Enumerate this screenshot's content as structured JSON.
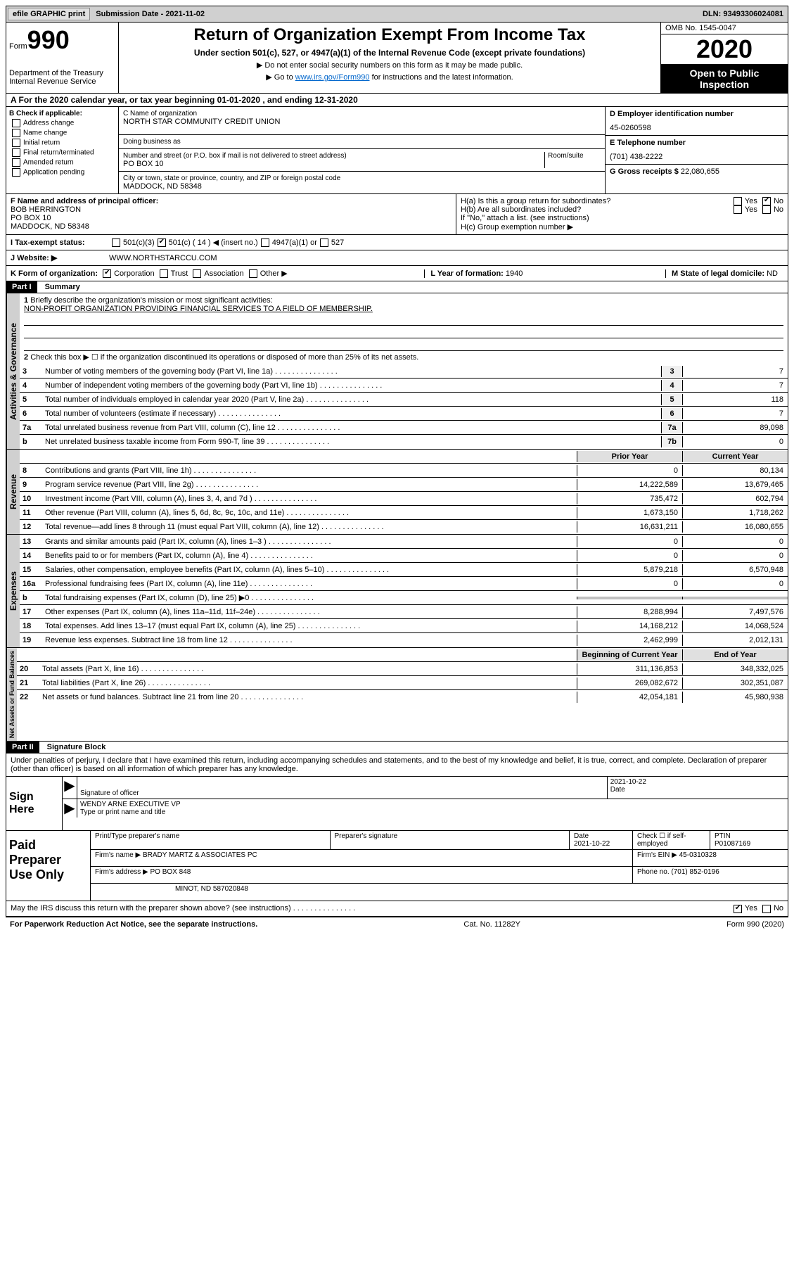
{
  "topbar": {
    "efile": "efile GRAPHIC print",
    "sub": "Submission Date - 2021-11-02",
    "dln": "DLN: 93493306024081"
  },
  "header": {
    "form_prefix": "Form",
    "form_num": "990",
    "dept": "Department of the Treasury Internal Revenue Service",
    "title": "Return of Organization Exempt From Income Tax",
    "sub1": "Under section 501(c), 527, or 4947(a)(1) of the Internal Revenue Code (except private foundations)",
    "sub2a": "Do not enter social security numbers on this form as it may be made public.",
    "sub2b_pre": "Go to ",
    "sub2b_link": "www.irs.gov/Form990",
    "sub2b_post": " for instructions and the latest information.",
    "omb": "OMB No. 1545-0047",
    "year": "2020",
    "open": "Open to Public Inspection"
  },
  "row_a": "A For the 2020 calendar year, or tax year beginning 01-01-2020   , and ending 12-31-2020",
  "check_b": {
    "header": "B Check if applicable:",
    "items": [
      "Address change",
      "Name change",
      "Initial return",
      "Final return/terminated",
      "Amended return",
      "Application pending"
    ]
  },
  "org": {
    "c_label": "C Name of organization",
    "name": "NORTH STAR COMMUNITY CREDIT UNION",
    "dba_label": "Doing business as",
    "addr_label": "Number and street (or P.O. box if mail is not delivered to street address)",
    "room_label": "Room/suite",
    "addr": "PO BOX 10",
    "city_label": "City or town, state or province, country, and ZIP or foreign postal code",
    "city": "MADDOCK, ND  58348"
  },
  "col_d": {
    "d_label": "D Employer identification number",
    "ein": "45-0260598",
    "e_label": "E Telephone number",
    "phone": "(701) 438-2222",
    "g_label": "G Gross receipts $",
    "g_val": "22,080,655"
  },
  "officer": {
    "f_label": "F  Name and address of principal officer:",
    "name": "BOB HERRINGTON",
    "addr1": "PO BOX 10",
    "addr2": "MADDOCK, ND  58348"
  },
  "h": {
    "ha": "H(a)  Is this a group return for subordinates?",
    "hb": "H(b)  Are all subordinates included?",
    "hb_note": "If \"No,\" attach a list. (see instructions)",
    "hc": "H(c)  Group exemption number ▶",
    "yes": "Yes",
    "no": "No"
  },
  "row_i": {
    "label": "I   Tax-exempt status:",
    "opt1": "501(c)(3)",
    "opt2": "501(c) ( 14 ) ◀ (insert no.)",
    "opt3": "4947(a)(1) or",
    "opt4": "527"
  },
  "row_j": {
    "label": "J   Website: ▶",
    "val": "WWW.NORTHSTARCCU.COM"
  },
  "row_k": {
    "label": "K Form of organization:",
    "corp": "Corporation",
    "trust": "Trust",
    "assoc": "Association",
    "other": "Other ▶",
    "l_label": "L Year of formation:",
    "l_val": "1940",
    "m_label": "M State of legal domicile:",
    "m_val": "ND"
  },
  "part1": {
    "header": "Part I",
    "title": "Summary",
    "line1": "Briefly describe the organization's mission or most significant activities:",
    "mission": "NON-PROFIT ORGANIZATION PROVIDING FINANCIAL SERVICES TO A FIELD OF MEMBERSHIP.",
    "line2": "Check this box ▶ ☐  if the organization discontinued its operations or disposed of more than 25% of its net assets."
  },
  "gov_lines": [
    {
      "n": "3",
      "d": "Number of voting members of the governing body (Part VI, line 1a)",
      "b": "3",
      "v": "7"
    },
    {
      "n": "4",
      "d": "Number of independent voting members of the governing body (Part VI, line 1b)",
      "b": "4",
      "v": "7"
    },
    {
      "n": "5",
      "d": "Total number of individuals employed in calendar year 2020 (Part V, line 2a)",
      "b": "5",
      "v": "118"
    },
    {
      "n": "6",
      "d": "Total number of volunteers (estimate if necessary)",
      "b": "6",
      "v": "7"
    },
    {
      "n": "7a",
      "d": "Total unrelated business revenue from Part VIII, column (C), line 12",
      "b": "7a",
      "v": "89,098"
    },
    {
      "n": "b",
      "d": "Net unrelated business taxable income from Form 990-T, line 39",
      "b": "7b",
      "v": "0"
    }
  ],
  "rev_header": {
    "py": "Prior Year",
    "cy": "Current Year"
  },
  "rev_lines": [
    {
      "n": "8",
      "d": "Contributions and grants (Part VIII, line 1h)",
      "py": "0",
      "cy": "80,134"
    },
    {
      "n": "9",
      "d": "Program service revenue (Part VIII, line 2g)",
      "py": "14,222,589",
      "cy": "13,679,465"
    },
    {
      "n": "10",
      "d": "Investment income (Part VIII, column (A), lines 3, 4, and 7d )",
      "py": "735,472",
      "cy": "602,794"
    },
    {
      "n": "11",
      "d": "Other revenue (Part VIII, column (A), lines 5, 6d, 8c, 9c, 10c, and 11e)",
      "py": "1,673,150",
      "cy": "1,718,262"
    },
    {
      "n": "12",
      "d": "Total revenue—add lines 8 through 11 (must equal Part VIII, column (A), line 12)",
      "py": "16,631,211",
      "cy": "16,080,655"
    }
  ],
  "exp_lines": [
    {
      "n": "13",
      "d": "Grants and similar amounts paid (Part IX, column (A), lines 1–3 )",
      "py": "0",
      "cy": "0"
    },
    {
      "n": "14",
      "d": "Benefits paid to or for members (Part IX, column (A), line 4)",
      "py": "0",
      "cy": "0"
    },
    {
      "n": "15",
      "d": "Salaries, other compensation, employee benefits (Part IX, column (A), lines 5–10)",
      "py": "5,879,218",
      "cy": "6,570,948"
    },
    {
      "n": "16a",
      "d": "Professional fundraising fees (Part IX, column (A), line 11e)",
      "py": "0",
      "cy": "0"
    },
    {
      "n": "b",
      "d": "Total fundraising expenses (Part IX, column (D), line 25) ▶0",
      "py": "",
      "cy": "",
      "shaded": true
    },
    {
      "n": "17",
      "d": "Other expenses (Part IX, column (A), lines 11a–11d, 11f–24e)",
      "py": "8,288,994",
      "cy": "7,497,576"
    },
    {
      "n": "18",
      "d": "Total expenses. Add lines 13–17 (must equal Part IX, column (A), line 25)",
      "py": "14,168,212",
      "cy": "14,068,524"
    },
    {
      "n": "19",
      "d": "Revenue less expenses. Subtract line 18 from line 12",
      "py": "2,462,999",
      "cy": "2,012,131"
    }
  ],
  "na_header": {
    "py": "Beginning of Current Year",
    "cy": "End of Year"
  },
  "na_lines": [
    {
      "n": "20",
      "d": "Total assets (Part X, line 16)",
      "py": "311,136,853",
      "cy": "348,332,025"
    },
    {
      "n": "21",
      "d": "Total liabilities (Part X, line 26)",
      "py": "269,082,672",
      "cy": "302,351,087"
    },
    {
      "n": "22",
      "d": "Net assets or fund balances. Subtract line 21 from line 20",
      "py": "42,054,181",
      "cy": "45,980,938"
    }
  ],
  "sidebars": {
    "gov": "Activities & Governance",
    "rev": "Revenue",
    "exp": "Expenses",
    "na": "Net Assets or Fund Balances"
  },
  "part2": {
    "header": "Part II",
    "title": "Signature Block",
    "decl": "Under penalties of perjury, I declare that I have examined this return, including accompanying schedules and statements, and to the best of my knowledge and belief, it is true, correct, and complete. Declaration of preparer (other than officer) is based on all information of which preparer has any knowledge."
  },
  "sign": {
    "left": "Sign Here",
    "sig_label": "Signature of officer",
    "date_label": "Date",
    "date": "2021-10-22",
    "name": "WENDY ARNE EXECUTIVE VP",
    "name_label": "Type or print name and title"
  },
  "prep": {
    "left": "Paid Preparer Use Only",
    "r1": {
      "c1": "Print/Type preparer's name",
      "c2": "Preparer's signature",
      "c3": "Date",
      "c3v": "2021-10-22",
      "c4": "Check ☐ if self-employed",
      "c5": "PTIN",
      "c5v": "P01087169"
    },
    "r2": {
      "label": "Firm's name      ▶",
      "val": "BRADY MARTZ & ASSOCIATES PC",
      "ein_label": "Firm's EIN ▶",
      "ein": "45-0310328"
    },
    "r3": {
      "label": "Firm's address ▶",
      "val": "PO BOX 848",
      "phone_label": "Phone no.",
      "phone": "(701) 852-0196"
    },
    "r4": {
      "val": "MINOT, ND  587020848"
    }
  },
  "discuss": {
    "q": "May the IRS discuss this return with the preparer shown above? (see instructions)",
    "yes": "Yes",
    "no": "No"
  },
  "footer": {
    "left": "For Paperwork Reduction Act Notice, see the separate instructions.",
    "mid": "Cat. No. 11282Y",
    "right": "Form 990 (2020)"
  }
}
